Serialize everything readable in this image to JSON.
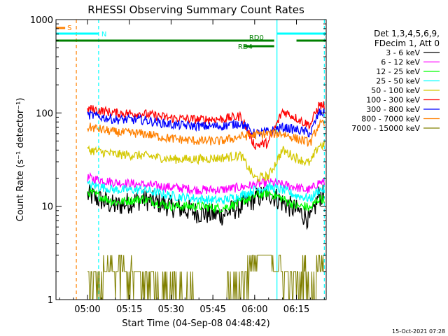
{
  "chart_data": {
    "type": "line",
    "title": "RHESSI Observing Summary Count Rates",
    "xlabel": "Start Time (04-Sep-08 04:48:42)",
    "ylabel": "Count Rate (s⁻¹ detector⁻¹)",
    "yscale": "log",
    "ylim": [
      1,
      1000
    ],
    "xlim": [
      "04:48:42",
      "06:25:40"
    ],
    "x_ticks": [
      "05:00",
      "05:15",
      "05:30",
      "05:45",
      "06:00",
      "06:15"
    ],
    "y_ticks": [
      "1",
      "10",
      "100",
      "1000"
    ],
    "grid": false,
    "legend_position": "right",
    "legend_header": [
      "Det 1,3,4,5,6,9,",
      "FDecim 1, Att 0"
    ],
    "timestamp": "15-Oct-2021 07:28",
    "series": [
      {
        "name": "3 - 6 keV",
        "color": "#000000",
        "x": [
          "05:01",
          "05:10",
          "05:20",
          "05:30",
          "05:40",
          "05:48",
          "05:55",
          "06:00",
          "06:05",
          "06:10",
          "06:15",
          "06:18",
          "06:20",
          "06:23"
        ],
        "values": [
          13,
          10,
          12,
          10,
          8.5,
          8.0,
          10,
          12,
          14,
          11,
          9,
          8,
          7,
          13
        ]
      },
      {
        "name": "6 - 12 keV",
        "color": "#ff00ff",
        "x": [
          "05:01",
          "05:10",
          "05:20",
          "05:30",
          "05:40",
          "05:48",
          "05:55",
          "06:00",
          "06:05",
          "06:10",
          "06:15",
          "06:18",
          "06:20",
          "06:23"
        ],
        "values": [
          20,
          18,
          17,
          16,
          15,
          15,
          16,
          17,
          18,
          17,
          16,
          15,
          15,
          18
        ]
      },
      {
        "name": "12 - 25 keV",
        "color": "#00ff00",
        "x": [
          "05:01",
          "05:10",
          "05:20",
          "05:30",
          "05:40",
          "05:48",
          "05:55",
          "06:00",
          "06:05",
          "06:10",
          "06:15",
          "06:18",
          "06:20",
          "06:23"
        ],
        "values": [
          14,
          11,
          12,
          10,
          10,
          9.5,
          11,
          13,
          14,
          12,
          10,
          10,
          9.5,
          12
        ]
      },
      {
        "name": "25 - 50 keV",
        "color": "#00ffff",
        "x": [
          "05:01",
          "05:10",
          "05:20",
          "05:30",
          "05:40",
          "05:48",
          "05:55",
          "06:00",
          "06:05",
          "06:10",
          "06:15",
          "06:18",
          "06:20",
          "06:23"
        ],
        "values": [
          17,
          15,
          15,
          13,
          12,
          11.5,
          13,
          15,
          16,
          15,
          13,
          12.5,
          12,
          15
        ]
      },
      {
        "name": "50 - 100 keV",
        "color": "#d4c800",
        "x": [
          "05:01",
          "05:10",
          "05:20",
          "05:30",
          "05:40",
          "05:48",
          "05:55",
          "06:00",
          "06:05",
          "06:10",
          "06:15",
          "06:18",
          "06:20",
          "06:23"
        ],
        "values": [
          40,
          36,
          35,
          32,
          32,
          33,
          35,
          20,
          21,
          40,
          33,
          30,
          29,
          45
        ]
      },
      {
        "name": "100 - 300 keV",
        "color": "#ff0000",
        "x": [
          "05:01",
          "05:10",
          "05:20",
          "05:30",
          "05:40",
          "05:48",
          "05:55",
          "06:00",
          "06:05",
          "06:10",
          "06:15",
          "06:18",
          "06:20",
          "06:23"
        ],
        "values": [
          110,
          100,
          98,
          88,
          85,
          86,
          92,
          45,
          48,
          105,
          88,
          78,
          75,
          120
        ]
      },
      {
        "name": "300 - 800 keV",
        "color": "#0000ff",
        "x": [
          "05:01",
          "05:10",
          "05:20",
          "05:30",
          "05:40",
          "05:48",
          "05:55",
          "06:00",
          "06:05",
          "06:10",
          "06:15",
          "06:18",
          "06:20",
          "06:23"
        ],
        "values": [
          95,
          85,
          84,
          75,
          72,
          72,
          78,
          60,
          63,
          70,
          66,
          63,
          60,
          100
        ]
      },
      {
        "name": "800 - 7000 keV",
        "color": "#ff8000",
        "x": [
          "05:01",
          "05:10",
          "05:20",
          "05:30",
          "05:40",
          "05:48",
          "05:55",
          "06:00",
          "06:05",
          "06:10",
          "06:15",
          "06:18",
          "06:20",
          "06:23"
        ],
        "values": [
          70,
          62,
          60,
          53,
          50,
          50,
          56,
          58,
          60,
          60,
          53,
          50,
          48,
          75
        ]
      },
      {
        "name": "7000 - 15000 keV",
        "color": "#808000",
        "x": [
          "05:01",
          "05:10",
          "05:20",
          "05:30",
          "05:40",
          "05:48",
          "05:55",
          "06:00",
          "06:05",
          "06:10",
          "06:15",
          "06:18",
          "06:20",
          "06:23"
        ],
        "values": [
          1.5,
          2.0,
          1.5,
          1.5,
          1.0,
          1.0,
          1.5,
          2.5,
          3.0,
          2.0,
          1.5,
          2.0,
          1.0,
          2.5
        ]
      }
    ],
    "state_bars": [
      {
        "label": "S",
        "color": "#ff8000",
        "start": "04:48:42",
        "end": "04:52:00"
      },
      {
        "label": "N",
        "color": "#00ffff",
        "start": "04:48:42",
        "end": "05:04:00"
      },
      {
        "label": "N",
        "color": "#00ffff",
        "start": "06:08:00",
        "end": "06:25:40"
      },
      {
        "label": "RD0",
        "color": "#008000",
        "start": "04:48:42",
        "end": "06:07:00"
      },
      {
        "label": "RD0",
        "color": "#008000",
        "start": "06:15:00",
        "end": "06:25:40"
      },
      {
        "label": "RD4",
        "color": "#008000",
        "start": "05:56:00",
        "end": "06:07:00"
      }
    ],
    "markers": [
      {
        "time": "04:56:00",
        "color": "#ff8000",
        "style": "dashed"
      },
      {
        "time": "05:04:00",
        "color": "#00ffff",
        "style": "dashed"
      },
      {
        "time": "06:08:00",
        "color": "#00ffff",
        "style": "solid"
      },
      {
        "time": "06:25:00",
        "color": "#00ffff",
        "style": "dashed"
      }
    ],
    "data_start": "05:00:00",
    "data_end": "06:25:00"
  }
}
